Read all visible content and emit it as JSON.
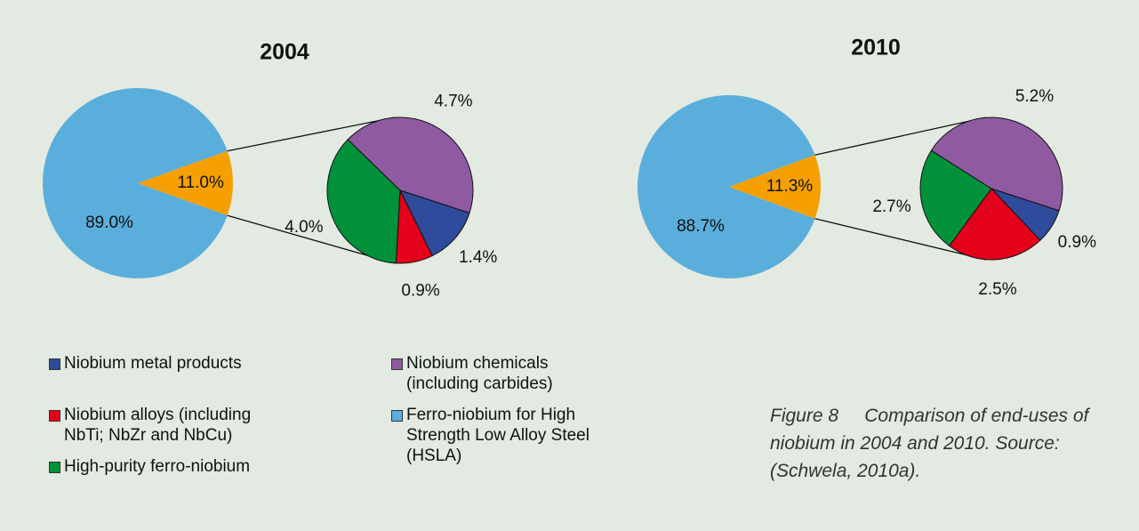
{
  "chart_data": [
    {
      "type": "pie-of-pie",
      "title": "2004",
      "values": [
        89.0,
        11.0
      ],
      "value_labels": [
        "89.0%",
        "11.0%"
      ],
      "colors": [
        "#5aaedb",
        "#f5a000"
      ],
      "sub_values": [
        1.4,
        0.9,
        4.0,
        4.7
      ],
      "sub_value_labels": [
        "1.4%",
        "0.9%",
        "4.0%",
        "4.7%"
      ]
    },
    {
      "type": "pie-of-pie",
      "title": "2010",
      "values": [
        88.7,
        11.3
      ],
      "value_labels": [
        "88.7%",
        "11.3%"
      ],
      "colors": [
        "#5aaedb",
        "#f5a000"
      ],
      "sub_values": [
        0.9,
        2.5,
        2.7,
        5.2
      ],
      "sub_value_labels": [
        "0.9%",
        "2.5%",
        "2.7%",
        "5.2%"
      ]
    }
  ],
  "legend": {
    "items": [
      {
        "name": "Niobium metal products",
        "color": "#2f4b9b"
      },
      {
        "name": "Niobium alloys (including NbTi; NbZr and NbCu)",
        "color": "#e2001a"
      },
      {
        "name": "High-purity ferro-niobium",
        "color": "#00913a"
      },
      {
        "name": "Niobium chemicals (including carbides)",
        "color": "#8f5aa2"
      },
      {
        "name": "Ferro-niobium for High Strength Low Alloy Steel (HSLA)",
        "color": "#5aaedb"
      }
    ]
  },
  "caption": {
    "label": "Figure 8",
    "text": "Comparison of end-uses of niobium in 2004 and 2010. Source: (Schwela, 2010a)."
  }
}
